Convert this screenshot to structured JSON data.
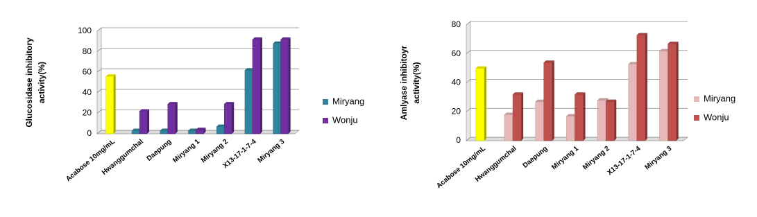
{
  "chart_data": [
    {
      "type": "bar",
      "y_label": [
        "Glucosidase inhibitory",
        "activity(%)"
      ],
      "categories": [
        "Acabose 10mg/mL",
        "Hwanggumchal",
        "Daepung",
        "Miryang 1",
        "Miryang 2",
        "X13-17-1-7-4",
        "Miryang 3"
      ],
      "reference": {
        "color": "#ffff00",
        "values": [
          56,
          null,
          null,
          null,
          null,
          null,
          null
        ]
      },
      "series": [
        {
          "name": "Miryang",
          "color": "#31849b",
          "values": [
            null,
            3,
            3,
            3,
            7,
            62,
            88
          ]
        },
        {
          "name": "Wonju",
          "color": "#7030a0",
          "values": [
            null,
            22,
            29,
            4,
            29,
            92,
            92
          ]
        }
      ],
      "ylim": [
        0,
        100
      ],
      "yticks": [
        0,
        20,
        40,
        60,
        80,
        100
      ],
      "grid": true
    },
    {
      "type": "bar",
      "y_label": [
        "Amlyase inhibitoyr",
        "activity(%)"
      ],
      "categories": [
        "Acabose 10mg/mL",
        "Hwanggumchal",
        "Daepung",
        "Miryang 1",
        "Miryang 2",
        "X13-17-1-7-4",
        "Miryang 3"
      ],
      "reference": {
        "color": "#ffff00",
        "values": [
          50,
          null,
          null,
          null,
          null,
          null,
          null
        ]
      },
      "series": [
        {
          "name": "Miryang",
          "color": "#e6b9b8",
          "values": [
            null,
            18,
            27,
            17,
            28,
            53,
            62
          ]
        },
        {
          "name": "Wonju",
          "color": "#c0504d",
          "values": [
            null,
            32,
            54,
            32,
            27,
            73,
            67
          ]
        }
      ],
      "ylim": [
        0,
        80
      ],
      "yticks": [
        0,
        20,
        40,
        60,
        80
      ],
      "grid": true
    }
  ]
}
